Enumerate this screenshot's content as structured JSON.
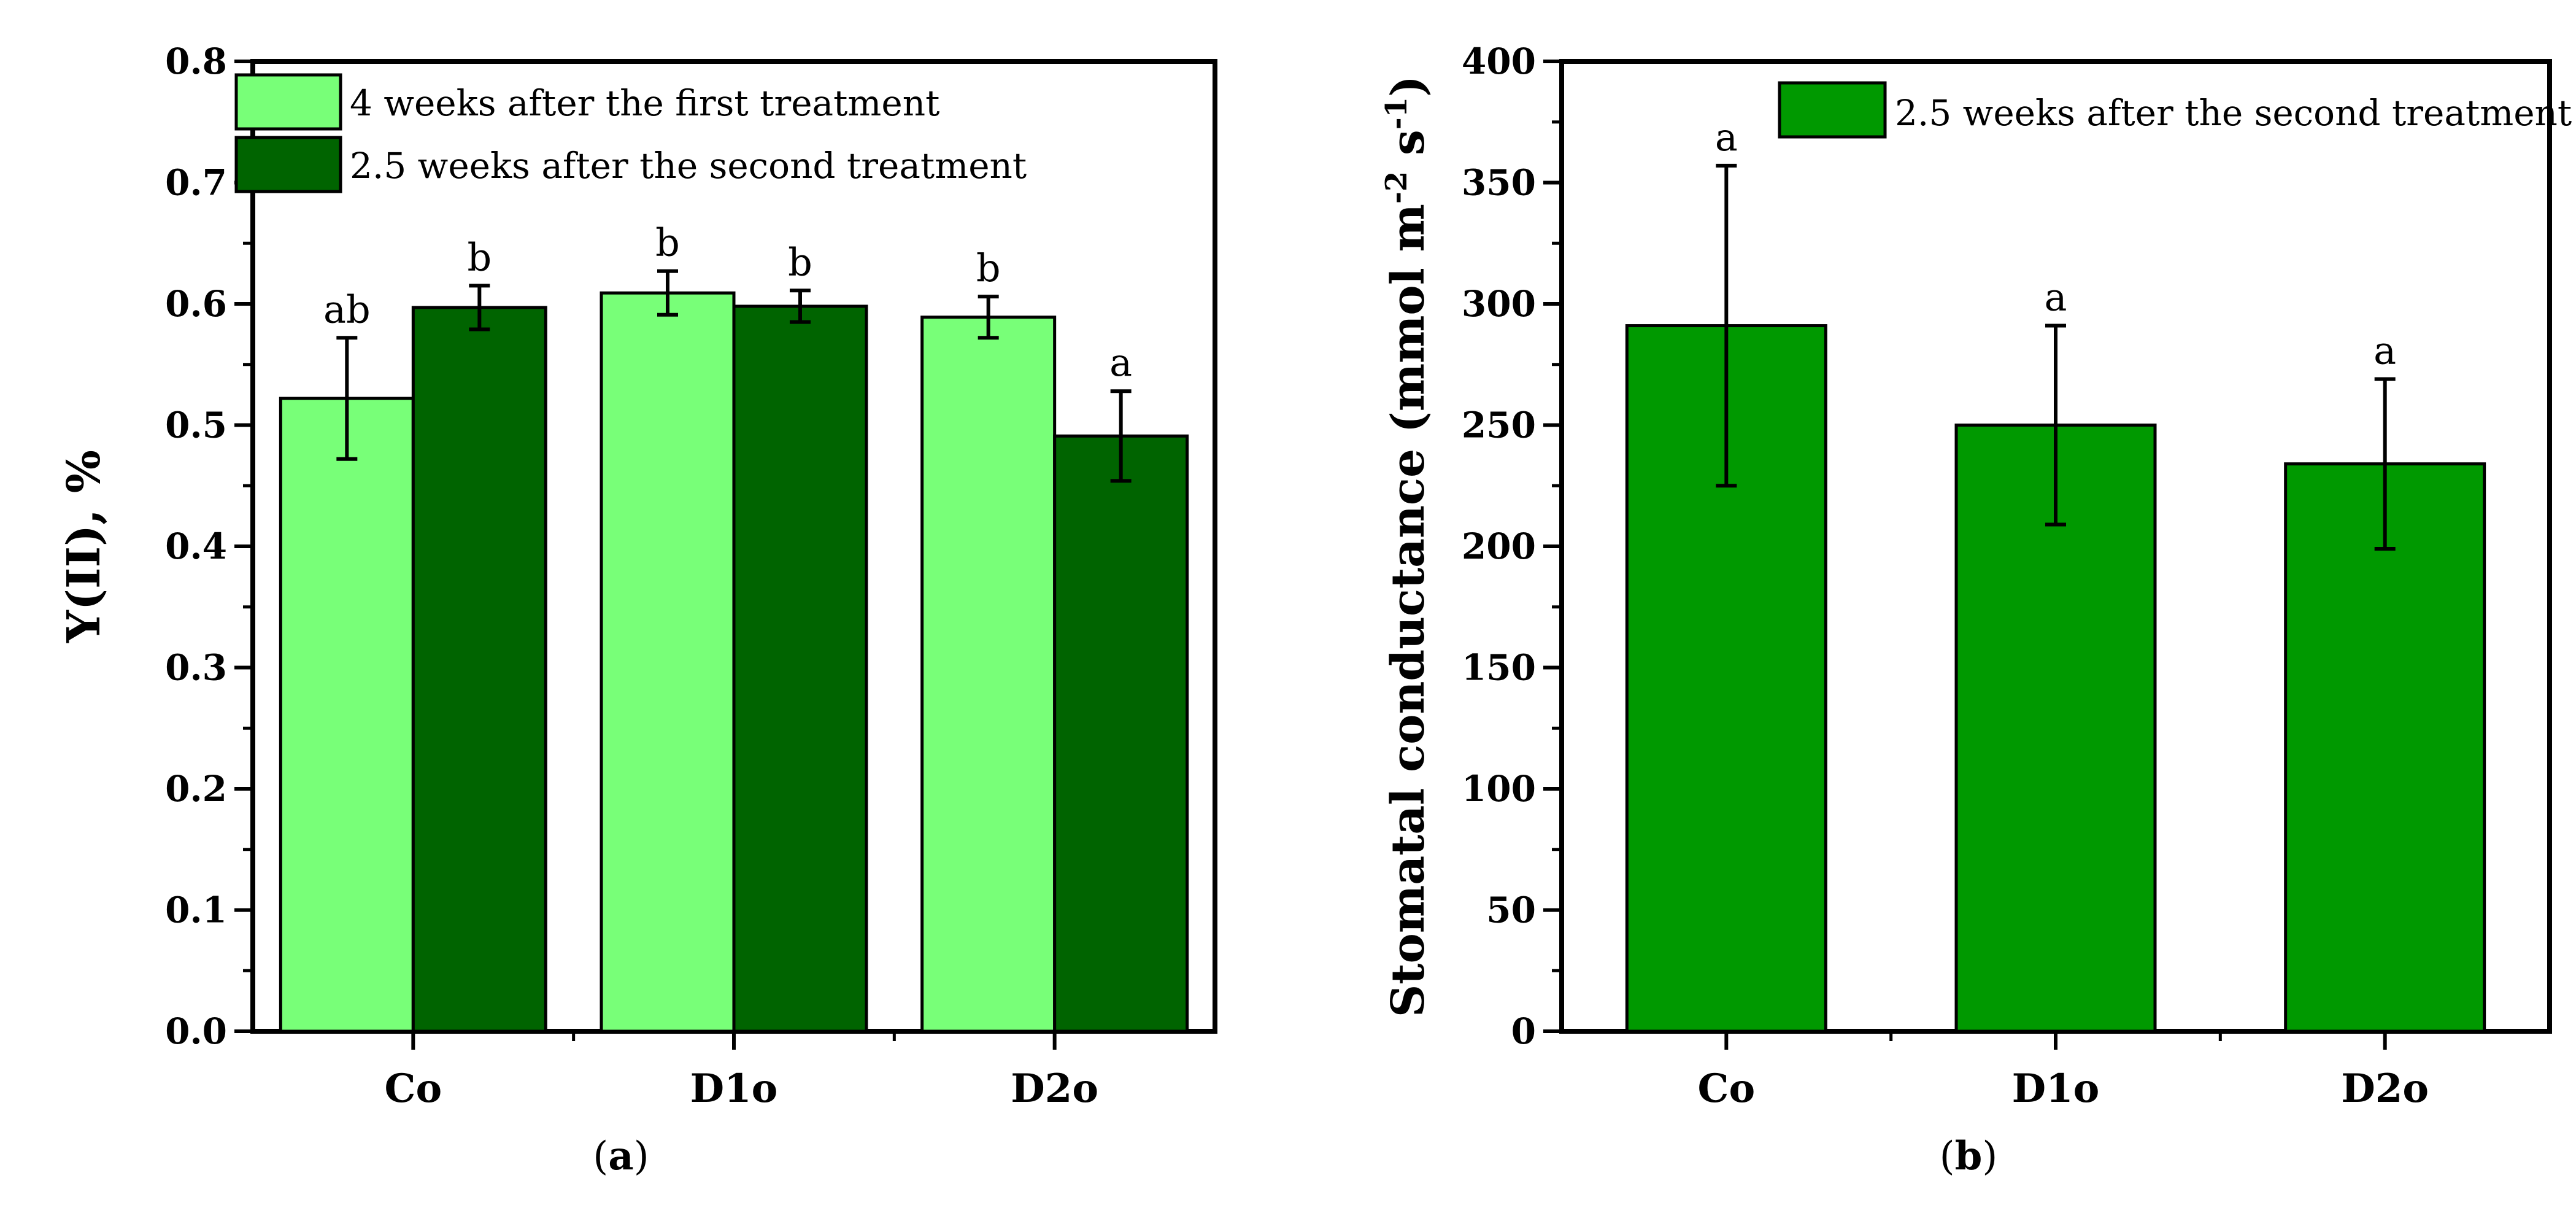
{
  "chart_data": [
    {
      "type": "bar",
      "panel_label": "a",
      "categories": [
        "Co",
        "D1o",
        "D2o"
      ],
      "ylabel": "Y(II), %",
      "ylim": [
        0,
        0.8
      ],
      "yticks": [
        0.0,
        0.1,
        0.2,
        0.3,
        0.4,
        0.5,
        0.6,
        0.7,
        0.8
      ],
      "ytick_labels": [
        "0.0",
        "0.1",
        "0.2",
        "0.3",
        "0.4",
        "0.5",
        "0.6",
        "0.7",
        "0.8"
      ],
      "legend_position": "top-left",
      "series": [
        {
          "name": "4 weeks after the first treatment",
          "color": "#78ff78",
          "values": [
            0.522,
            0.609,
            0.589
          ],
          "errors": [
            0.05,
            0.018,
            0.017
          ],
          "significance": [
            "ab",
            "b",
            "b"
          ]
        },
        {
          "name": "2.5 weeks after the second treatment",
          "color": "#006400",
          "values": [
            0.597,
            0.598,
            0.491
          ],
          "errors": [
            0.018,
            0.013,
            0.037
          ],
          "significance": [
            "b",
            "b",
            "a"
          ]
        }
      ]
    },
    {
      "type": "bar",
      "panel_label": "b",
      "categories": [
        "Co",
        "D1o",
        "D2o"
      ],
      "ylabel_main": "Stomatal conductance (mmol m",
      "ylabel_sup1": "-2",
      "ylabel_mid": " s",
      "ylabel_sup2": "-1",
      "ylabel_end": ")",
      "ylim": [
        0,
        400
      ],
      "yticks": [
        0,
        50,
        100,
        150,
        200,
        250,
        300,
        350,
        400
      ],
      "ytick_labels": [
        "0",
        "50",
        "100",
        "150",
        "200",
        "250",
        "300",
        "350",
        "400"
      ],
      "legend_position": "top-right",
      "series": [
        {
          "name": "2.5 weeks after the second treatment",
          "color": "#009900",
          "values": [
            291,
            250,
            234
          ],
          "errors": [
            66,
            41,
            35
          ],
          "significance": [
            "a",
            "a",
            "a"
          ]
        }
      ]
    }
  ]
}
